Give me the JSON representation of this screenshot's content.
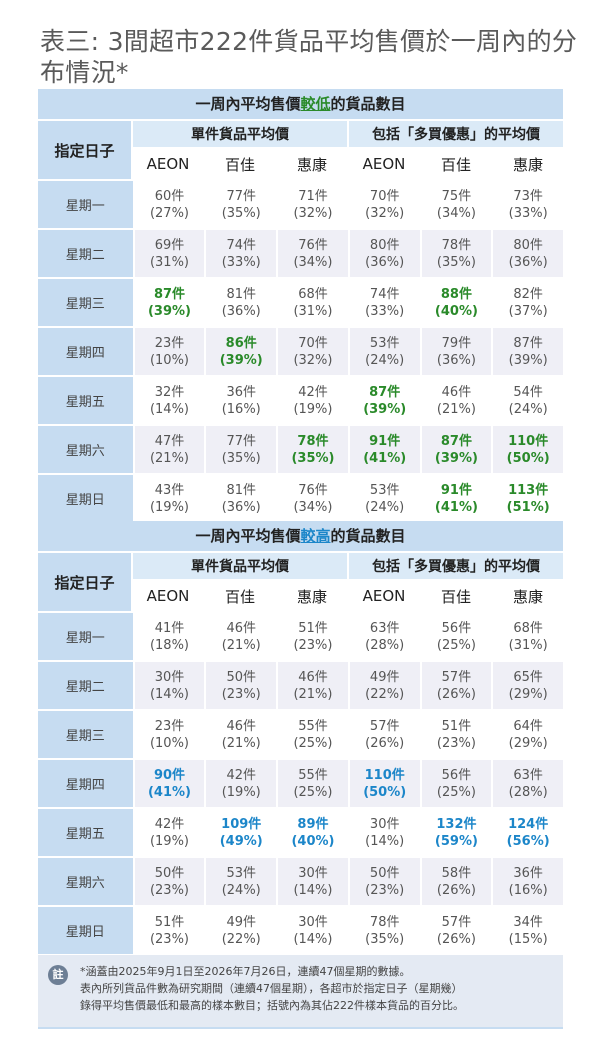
{
  "title": "表三: 3間超市222件貨品平均售價於一周內的分布情況*",
  "low": {
    "header_prefix": "一周內平均售價",
    "header_highlight": "較低",
    "header_suffix": "的貨品數目"
  },
  "high": {
    "header_prefix": "一周內平均售價",
    "header_highlight": "較高",
    "header_suffix": "的貨品數目"
  },
  "day_header": "指定日子",
  "group1": "單件貨品平均價",
  "group2": "包括「多買優惠」的平均價",
  "stores": [
    "AEON",
    "百佳",
    "惠康",
    "AEON",
    "百佳",
    "惠康"
  ],
  "days": [
    "星期一",
    "星期二",
    "星期三",
    "星期四",
    "星期五",
    "星期六",
    "星期日"
  ],
  "low_rows": [
    [
      [
        "60件",
        "(27%)",
        0
      ],
      [
        "77件",
        "(35%)",
        0
      ],
      [
        "71件",
        "(32%)",
        0
      ],
      [
        "70件",
        "(32%)",
        0
      ],
      [
        "75件",
        "(34%)",
        0
      ],
      [
        "73件",
        "(33%)",
        0
      ]
    ],
    [
      [
        "69件",
        "(31%)",
        0
      ],
      [
        "74件",
        "(33%)",
        0
      ],
      [
        "76件",
        "(34%)",
        0
      ],
      [
        "80件",
        "(36%)",
        0
      ],
      [
        "78件",
        "(35%)",
        0
      ],
      [
        "80件",
        "(36%)",
        0
      ]
    ],
    [
      [
        "87件",
        "(39%)",
        1
      ],
      [
        "81件",
        "(36%)",
        0
      ],
      [
        "68件",
        "(31%)",
        0
      ],
      [
        "74件",
        "(33%)",
        0
      ],
      [
        "88件",
        "(40%)",
        1
      ],
      [
        "82件",
        "(37%)",
        0
      ]
    ],
    [
      [
        "23件",
        "(10%)",
        0
      ],
      [
        "86件",
        "(39%)",
        1
      ],
      [
        "70件",
        "(32%)",
        0
      ],
      [
        "53件",
        "(24%)",
        0
      ],
      [
        "79件",
        "(36%)",
        0
      ],
      [
        "87件",
        "(39%)",
        0
      ]
    ],
    [
      [
        "32件",
        "(14%)",
        0
      ],
      [
        "36件",
        "(16%)",
        0
      ],
      [
        "42件",
        "(19%)",
        0
      ],
      [
        "87件",
        "(39%)",
        1
      ],
      [
        "46件",
        "(21%)",
        0
      ],
      [
        "54件",
        "(24%)",
        0
      ]
    ],
    [
      [
        "47件",
        "(21%)",
        0
      ],
      [
        "77件",
        "(35%)",
        0
      ],
      [
        "78件",
        "(35%)",
        1
      ],
      [
        "91件",
        "(41%)",
        1
      ],
      [
        "87件",
        "(39%)",
        1
      ],
      [
        "110件",
        "(50%)",
        1
      ]
    ],
    [
      [
        "43件",
        "(19%)",
        0
      ],
      [
        "81件",
        "(36%)",
        0
      ],
      [
        "76件",
        "(34%)",
        0
      ],
      [
        "53件",
        "(24%)",
        0
      ],
      [
        "91件",
        "(41%)",
        1
      ],
      [
        "113件",
        "(51%)",
        1
      ]
    ]
  ],
  "high_rows": [
    [
      [
        "41件",
        "(18%)",
        0
      ],
      [
        "46件",
        "(21%)",
        0
      ],
      [
        "51件",
        "(23%)",
        0
      ],
      [
        "63件",
        "(28%)",
        0
      ],
      [
        "56件",
        "(25%)",
        0
      ],
      [
        "68件",
        "(31%)",
        0
      ]
    ],
    [
      [
        "30件",
        "(14%)",
        0
      ],
      [
        "50件",
        "(23%)",
        0
      ],
      [
        "46件",
        "(21%)",
        0
      ],
      [
        "49件",
        "(22%)",
        0
      ],
      [
        "57件",
        "(26%)",
        0
      ],
      [
        "65件",
        "(29%)",
        0
      ]
    ],
    [
      [
        "23件",
        "(10%)",
        0
      ],
      [
        "46件",
        "(21%)",
        0
      ],
      [
        "55件",
        "(25%)",
        0
      ],
      [
        "57件",
        "(26%)",
        0
      ],
      [
        "51件",
        "(23%)",
        0
      ],
      [
        "64件",
        "(29%)",
        0
      ]
    ],
    [
      [
        "90件",
        "(41%)",
        1
      ],
      [
        "42件",
        "(19%)",
        0
      ],
      [
        "55件",
        "(25%)",
        0
      ],
      [
        "110件",
        "(50%)",
        1
      ],
      [
        "56件",
        "(25%)",
        0
      ],
      [
        "63件",
        "(28%)",
        0
      ]
    ],
    [
      [
        "42件",
        "(19%)",
        0
      ],
      [
        "109件",
        "(49%)",
        1
      ],
      [
        "89件",
        "(40%)",
        1
      ],
      [
        "30件",
        "(14%)",
        0
      ],
      [
        "132件",
        "(59%)",
        1
      ],
      [
        "124件",
        "(56%)",
        1
      ]
    ],
    [
      [
        "50件",
        "(23%)",
        0
      ],
      [
        "53件",
        "(24%)",
        0
      ],
      [
        "30件",
        "(14%)",
        0
      ],
      [
        "50件",
        "(23%)",
        0
      ],
      [
        "58件",
        "(26%)",
        0
      ],
      [
        "36件",
        "(16%)",
        0
      ]
    ],
    [
      [
        "51件",
        "(23%)",
        0
      ],
      [
        "49件",
        "(22%)",
        0
      ],
      [
        "30件",
        "(14%)",
        0
      ],
      [
        "78件",
        "(35%)",
        0
      ],
      [
        "57件",
        "(26%)",
        0
      ],
      [
        "34件",
        "(15%)",
        0
      ]
    ]
  ],
  "note_icon": "註",
  "note_lines": [
    "*涵蓋由2025年9月1日至2026年7月26日，連續47個星期的數據。",
    "表內所列貨品件數為研究期間（連續47個星期），各超市於指定日子（星期幾）",
    "錄得平均售價最低和最高的樣本數目；括號內為其佔222件樣本貨品的百分比。"
  ],
  "colors": {
    "green": "#2a8a2a",
    "blue": "#1c86c9",
    "header_blue": "#c6dcf1"
  }
}
